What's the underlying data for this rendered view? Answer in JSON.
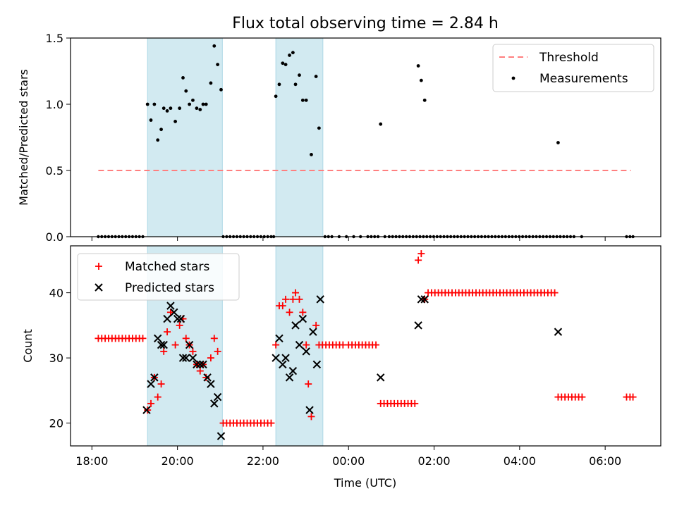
{
  "title": "Flux total observing time = 2.84 h",
  "colors": {
    "shade": "#add8e6",
    "threshold": "#ff7f7f",
    "measurement": "#000000",
    "matched": "#ff0000",
    "predicted": "#000000"
  },
  "chart_data": [
    {
      "type": "scatter",
      "ylabel": "Matched/Predicted stars",
      "ylim": [
        0,
        1.5
      ],
      "yticks": [
        "0.0",
        "0.5",
        "1.0",
        "1.5"
      ],
      "xlim": [
        17.5,
        31.3
      ],
      "legend_position": "top-right",
      "shaded_intervals": [
        [
          19.3,
          21.05
        ],
        [
          22.3,
          23.4
        ]
      ],
      "threshold": {
        "name": "Threshold",
        "y": 0.5,
        "x_range": [
          18.15,
          30.6
        ]
      },
      "series": [
        {
          "name": "Measurements",
          "zero_points_x": [
            18.15,
            18.23,
            18.31,
            18.39,
            18.47,
            18.55,
            18.63,
            18.71,
            18.79,
            18.87,
            18.95,
            19.03,
            19.11,
            19.19,
            21.07,
            21.15,
            21.23,
            21.31,
            21.39,
            21.47,
            21.55,
            21.63,
            21.71,
            21.79,
            21.87,
            21.95,
            22.03,
            22.11,
            22.19,
            22.25,
            23.45,
            23.53,
            23.61,
            23.78,
            23.95,
            24.12,
            24.28,
            24.45,
            24.53,
            24.61,
            24.69,
            24.85,
            24.95,
            25.03,
            25.11,
            25.19,
            25.27,
            25.35,
            25.43,
            25.51,
            25.59,
            25.67,
            25.75,
            25.83,
            25.91,
            25.99,
            26.07,
            26.15,
            26.23,
            26.31,
            26.39,
            26.47,
            26.55,
            26.63,
            26.71,
            26.79,
            26.87,
            26.95,
            27.03,
            27.11,
            27.19,
            27.27,
            27.35,
            27.43,
            27.51,
            27.59,
            27.67,
            27.75,
            27.83,
            27.91,
            27.99,
            28.07,
            28.15,
            28.23,
            28.31,
            28.39,
            28.47,
            28.55,
            28.63,
            28.71,
            28.79,
            28.87,
            28.95,
            29.03,
            29.11,
            29.19,
            29.27,
            29.45,
            30.5,
            30.58,
            30.65
          ],
          "points": [
            [
              19.3,
              1.0
            ],
            [
              19.38,
              0.88
            ],
            [
              19.46,
              1.0
            ],
            [
              19.54,
              0.73
            ],
            [
              19.62,
              0.81
            ],
            [
              19.68,
              0.97
            ],
            [
              19.76,
              0.95
            ],
            [
              19.84,
              0.97
            ],
            [
              19.95,
              0.87
            ],
            [
              20.05,
              0.97
            ],
            [
              20.13,
              1.2
            ],
            [
              20.2,
              1.1
            ],
            [
              20.28,
              1.0
            ],
            [
              20.36,
              1.03
            ],
            [
              20.45,
              0.97
            ],
            [
              20.53,
              0.96
            ],
            [
              20.6,
              1.0
            ],
            [
              20.67,
              1.0
            ],
            [
              20.78,
              1.16
            ],
            [
              20.86,
              1.44
            ],
            [
              20.94,
              1.3
            ],
            [
              21.02,
              1.11
            ],
            [
              22.3,
              1.06
            ],
            [
              22.38,
              1.15
            ],
            [
              22.46,
              1.31
            ],
            [
              22.53,
              1.3
            ],
            [
              22.62,
              1.37
            ],
            [
              22.7,
              1.39
            ],
            [
              22.76,
              1.15
            ],
            [
              22.85,
              1.22
            ],
            [
              22.93,
              1.03
            ],
            [
              23.01,
              1.03
            ],
            [
              23.13,
              0.62
            ],
            [
              23.24,
              1.21
            ],
            [
              23.31,
              0.82
            ],
            [
              24.75,
              0.85
            ],
            [
              25.63,
              1.29
            ],
            [
              25.7,
              1.18
            ],
            [
              25.78,
              1.03
            ],
            [
              28.9,
              0.71
            ]
          ]
        }
      ]
    },
    {
      "type": "scatter",
      "ylabel": "Count",
      "xlabel": "Time (UTC)",
      "ylim": [
        16.5,
        47.2
      ],
      "yticks": [
        "20",
        "30",
        "40"
      ],
      "xlim": [
        17.5,
        31.3
      ],
      "xtick_values": [
        18,
        20,
        22,
        24,
        26,
        28,
        30
      ],
      "xtick_labels": [
        "18:00",
        "20:00",
        "22:00",
        "00:00",
        "02:00",
        "04:00",
        "06:00"
      ],
      "legend_position": "top-left",
      "shaded_intervals": [
        [
          19.3,
          21.05
        ],
        [
          22.3,
          23.4
        ]
      ],
      "series": [
        {
          "name": "Matched stars",
          "points": [
            [
              18.15,
              33
            ],
            [
              18.23,
              33
            ],
            [
              18.31,
              33
            ],
            [
              18.39,
              33
            ],
            [
              18.47,
              33
            ],
            [
              18.55,
              33
            ],
            [
              18.63,
              33
            ],
            [
              18.71,
              33
            ],
            [
              18.79,
              33
            ],
            [
              18.87,
              33
            ],
            [
              18.95,
              33
            ],
            [
              19.03,
              33
            ],
            [
              19.11,
              33
            ],
            [
              19.19,
              33
            ],
            [
              19.3,
              22
            ],
            [
              19.38,
              23
            ],
            [
              19.46,
              27
            ],
            [
              19.54,
              24
            ],
            [
              19.62,
              26
            ],
            [
              19.68,
              31
            ],
            [
              19.76,
              34
            ],
            [
              19.84,
              37
            ],
            [
              19.95,
              32
            ],
            [
              20.05,
              35
            ],
            [
              20.13,
              36
            ],
            [
              20.2,
              33
            ],
            [
              20.28,
              32
            ],
            [
              20.36,
              31
            ],
            [
              20.45,
              29
            ],
            [
              20.53,
              28
            ],
            [
              20.6,
              29
            ],
            [
              20.67,
              27
            ],
            [
              20.78,
              30
            ],
            [
              20.86,
              33
            ],
            [
              20.94,
              31
            ],
            [
              21.07,
              20
            ],
            [
              21.15,
              20
            ],
            [
              21.23,
              20
            ],
            [
              21.31,
              20
            ],
            [
              21.39,
              20
            ],
            [
              21.47,
              20
            ],
            [
              21.55,
              20
            ],
            [
              21.63,
              20
            ],
            [
              21.71,
              20
            ],
            [
              21.79,
              20
            ],
            [
              21.87,
              20
            ],
            [
              21.95,
              20
            ],
            [
              22.03,
              20
            ],
            [
              22.11,
              20
            ],
            [
              22.19,
              20
            ],
            [
              22.3,
              32
            ],
            [
              22.38,
              38
            ],
            [
              22.46,
              38
            ],
            [
              22.53,
              39
            ],
            [
              22.62,
              37
            ],
            [
              22.7,
              39
            ],
            [
              22.76,
              40
            ],
            [
              22.85,
              39
            ],
            [
              22.93,
              37
            ],
            [
              23.01,
              32
            ],
            [
              23.06,
              26
            ],
            [
              23.13,
              21
            ],
            [
              23.24,
              35
            ],
            [
              23.31,
              32
            ],
            [
              23.39,
              32
            ],
            [
              23.47,
              32
            ],
            [
              23.55,
              32
            ],
            [
              23.63,
              32
            ],
            [
              23.71,
              32
            ],
            [
              23.79,
              32
            ],
            [
              23.87,
              32
            ],
            [
              24.0,
              32
            ],
            [
              24.08,
              32
            ],
            [
              24.16,
              32
            ],
            [
              24.24,
              32
            ],
            [
              24.32,
              32
            ],
            [
              24.4,
              32
            ],
            [
              24.48,
              32
            ],
            [
              24.56,
              32
            ],
            [
              24.64,
              32
            ],
            [
              24.75,
              23
            ],
            [
              24.83,
              23
            ],
            [
              24.91,
              23
            ],
            [
              24.99,
              23
            ],
            [
              25.07,
              23
            ],
            [
              25.15,
              23
            ],
            [
              25.23,
              23
            ],
            [
              25.31,
              23
            ],
            [
              25.39,
              23
            ],
            [
              25.47,
              23
            ],
            [
              25.55,
              23
            ],
            [
              25.63,
              45
            ],
            [
              25.7,
              46
            ],
            [
              25.78,
              39
            ],
            [
              25.86,
              40
            ],
            [
              25.94,
              40
            ],
            [
              26.02,
              40
            ],
            [
              26.1,
              40
            ],
            [
              26.18,
              40
            ],
            [
              26.26,
              40
            ],
            [
              26.34,
              40
            ],
            [
              26.42,
              40
            ],
            [
              26.5,
              40
            ],
            [
              26.58,
              40
            ],
            [
              26.66,
              40
            ],
            [
              26.74,
              40
            ],
            [
              26.82,
              40
            ],
            [
              26.9,
              40
            ],
            [
              26.98,
              40
            ],
            [
              27.06,
              40
            ],
            [
              27.14,
              40
            ],
            [
              27.22,
              40
            ],
            [
              27.3,
              40
            ],
            [
              27.38,
              40
            ],
            [
              27.46,
              40
            ],
            [
              27.54,
              40
            ],
            [
              27.62,
              40
            ],
            [
              27.7,
              40
            ],
            [
              27.78,
              40
            ],
            [
              27.86,
              40
            ],
            [
              27.94,
              40
            ],
            [
              28.02,
              40
            ],
            [
              28.1,
              40
            ],
            [
              28.18,
              40
            ],
            [
              28.26,
              40
            ],
            [
              28.34,
              40
            ],
            [
              28.42,
              40
            ],
            [
              28.5,
              40
            ],
            [
              28.58,
              40
            ],
            [
              28.66,
              40
            ],
            [
              28.74,
              40
            ],
            [
              28.82,
              40
            ],
            [
              28.9,
              24
            ],
            [
              28.98,
              24
            ],
            [
              29.06,
              24
            ],
            [
              29.14,
              24
            ],
            [
              29.22,
              24
            ],
            [
              29.3,
              24
            ],
            [
              29.38,
              24
            ],
            [
              29.46,
              24
            ],
            [
              30.5,
              24
            ],
            [
              30.58,
              24
            ],
            [
              30.65,
              24
            ]
          ]
        },
        {
          "name": "Predicted stars",
          "points": [
            [
              19.28,
              22
            ],
            [
              19.38,
              26
            ],
            [
              19.46,
              27
            ],
            [
              19.54,
              33
            ],
            [
              19.62,
              32
            ],
            [
              19.68,
              32
            ],
            [
              19.76,
              36
            ],
            [
              19.84,
              38
            ],
            [
              19.92,
              37
            ],
            [
              20.0,
              36
            ],
            [
              20.08,
              36
            ],
            [
              20.13,
              30
            ],
            [
              20.2,
              30
            ],
            [
              20.28,
              32
            ],
            [
              20.36,
              30
            ],
            [
              20.45,
              29
            ],
            [
              20.53,
              29
            ],
            [
              20.6,
              29
            ],
            [
              20.7,
              27
            ],
            [
              20.78,
              26
            ],
            [
              20.86,
              23
            ],
            [
              20.94,
              24
            ],
            [
              21.02,
              18
            ],
            [
              22.3,
              30
            ],
            [
              22.38,
              33
            ],
            [
              22.46,
              29
            ],
            [
              22.53,
              30
            ],
            [
              22.62,
              27
            ],
            [
              22.7,
              28
            ],
            [
              22.76,
              35
            ],
            [
              22.85,
              32
            ],
            [
              22.93,
              36
            ],
            [
              23.01,
              31
            ],
            [
              23.09,
              22
            ],
            [
              23.17,
              34
            ],
            [
              23.26,
              29
            ],
            [
              23.34,
              39
            ],
            [
              24.75,
              27
            ],
            [
              25.63,
              35
            ],
            [
              25.7,
              39
            ],
            [
              25.78,
              39
            ],
            [
              28.9,
              34
            ]
          ]
        }
      ]
    }
  ]
}
